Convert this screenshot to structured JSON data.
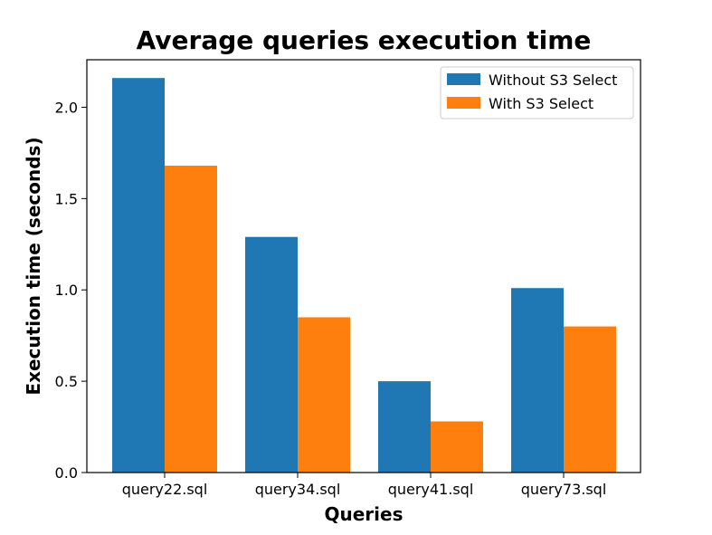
{
  "chart_data": {
    "type": "bar",
    "title": "Average queries execution time",
    "xlabel": "Queries",
    "ylabel": "Execution time (seconds)",
    "categories": [
      "query22.sql",
      "query34.sql",
      "query41.sql",
      "query73.sql"
    ],
    "series": [
      {
        "name": "Without S3 Select",
        "color": "#1f77b4",
        "values": [
          2.16,
          1.29,
          0.5,
          1.01
        ]
      },
      {
        "name": "With S3 Select",
        "color": "#ff7f0e",
        "values": [
          1.68,
          0.85,
          0.28,
          0.8
        ]
      }
    ],
    "ylim": [
      0,
      2.26
    ],
    "yticks": [
      0.0,
      0.5,
      1.0,
      1.5,
      2.0
    ],
    "ytick_labels": [
      "0.0",
      "0.5",
      "1.0",
      "1.5",
      "2.0"
    ],
    "grid": false,
    "legend_position": "upper right"
  }
}
